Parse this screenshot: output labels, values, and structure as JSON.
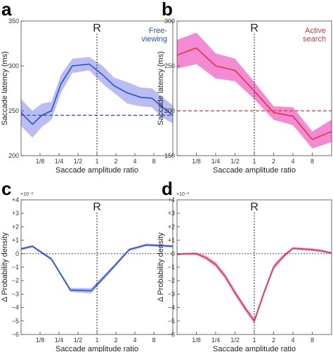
{
  "colors": {
    "blue": "#2451c9",
    "blue_band": "#b9bdf2",
    "red": "#d63a3a",
    "red_band": "#f48ad3",
    "pink_line": "#d43466",
    "pink_band": "#f4a4bf",
    "grid_dashed_blue": "#2451c9",
    "grid_dashed_red": "#e03030"
  },
  "chart_data": [
    {
      "id": "a",
      "panel_letter": "a",
      "type": "line",
      "xlabel": "Saccade amplitude ratio",
      "ylabel": "Saccade latency (ms)",
      "reference_label": "R",
      "annotation": [
        "Free-",
        "viewing"
      ],
      "exponent_label": "",
      "x_ticks": [
        "1/8",
        "1/4",
        "1/2",
        "1",
        "2",
        "4",
        "8"
      ],
      "x_tick_positions": [
        -3,
        -2,
        -1,
        0,
        1,
        2,
        3
      ],
      "xlim": [
        -4,
        4
      ],
      "ylim": [
        200,
        350
      ],
      "y_ticks": [
        200,
        250,
        300,
        350
      ],
      "y_tick_labels": [
        "200",
        "250",
        "300",
        "350"
      ],
      "reference_y": 245,
      "x": [
        -4,
        -3.4,
        -2.9,
        -2.4,
        -1.9,
        -1.3,
        -0.4,
        0.3,
        0.9,
        1.6,
        2.3,
        2.9,
        3.4,
        4
      ],
      "series": [
        {
          "values": [
            248,
            235,
            245,
            250,
            280,
            300,
            302,
            290,
            278,
            270,
            265,
            264,
            255,
            245
          ],
          "lower": [
            233,
            220,
            232,
            240,
            270,
            292,
            295,
            280,
            270,
            258,
            255,
            254,
            243,
            236
          ],
          "upper": [
            263,
            250,
            258,
            260,
            290,
            308,
            310,
            300,
            287,
            282,
            276,
            275,
            266,
            256
          ],
          "line_color": "#2451c9",
          "band_color": "#b9bdf2"
        }
      ]
    },
    {
      "id": "b",
      "panel_letter": "b",
      "type": "line",
      "xlabel": "Saccade amplitude ratio",
      "ylabel": "Saccade latency (ms)",
      "reference_label": "R",
      "annotation": [
        "Active",
        "search"
      ],
      "exponent_label": "",
      "x_ticks": [
        "1/8",
        "1/4",
        "1/2",
        "1",
        "2",
        "4",
        "8"
      ],
      "x_tick_positions": [
        -3,
        -2,
        -1,
        0,
        1,
        2,
        3
      ],
      "xlim": [
        -4,
        4
      ],
      "ylim": [
        150,
        300
      ],
      "y_ticks": [
        150,
        200,
        250,
        300
      ],
      "y_tick_labels": [
        "150",
        "200",
        "250",
        "300"
      ],
      "reference_y": 200,
      "x": [
        -4,
        -3,
        -2,
        -1,
        0,
        1,
        2,
        3,
        4
      ],
      "series": [
        {
          "values": [
            262,
            270,
            250,
            245,
            222,
            198,
            194,
            168,
            177
          ],
          "lower": [
            247,
            252,
            236,
            233,
            213,
            190,
            184,
            158,
            165
          ],
          "upper": [
            279,
            287,
            264,
            258,
            232,
            205,
            204,
            177,
            190
          ],
          "line_color": "#d63a3a",
          "band_color": "#f48ad3"
        }
      ]
    },
    {
      "id": "c",
      "panel_letter": "c",
      "type": "line",
      "xlabel": "Saccade amplitude ratio",
      "ylabel": "Δ Probability density",
      "reference_label": "R",
      "annotation": [],
      "exponent_label": "×10⁻²",
      "x_ticks": [
        "1/8",
        "1/4",
        "1/2",
        "1",
        "2",
        "4",
        "8"
      ],
      "x_tick_positions": [
        -3,
        -2,
        -1,
        0,
        1,
        2,
        3
      ],
      "xlim": [
        -4,
        4
      ],
      "ylim": [
        -6,
        4
      ],
      "y_ticks": [
        -6,
        -5,
        -4,
        -3,
        -2,
        -1,
        0,
        1,
        2,
        3,
        4
      ],
      "y_tick_labels": [
        "−6",
        "−5",
        "−4",
        "−3",
        "−2",
        "−1",
        "0",
        "+1",
        "+2",
        "+3",
        "+4"
      ],
      "reference_y": 0,
      "x": [
        -4,
        -3.4,
        -2.4,
        -1.4,
        -0.3,
        0.8,
        1.7,
        2.6,
        3.4,
        4
      ],
      "series": [
        {
          "values": [
            0.35,
            0.55,
            -0.4,
            -2.7,
            -2.75,
            -1.1,
            0.3,
            0.65,
            0.6,
            0.55
          ],
          "lower": [
            0.25,
            0.45,
            -0.52,
            -2.85,
            -2.95,
            -1.25,
            0.2,
            0.55,
            0.5,
            0.45
          ],
          "upper": [
            0.45,
            0.65,
            -0.28,
            -2.55,
            -2.55,
            -0.95,
            0.4,
            0.75,
            0.7,
            0.65
          ],
          "line_color": "#2451c9",
          "band_color": "#b9bdf2"
        }
      ]
    },
    {
      "id": "d",
      "panel_letter": "d",
      "type": "line",
      "xlabel": "Saccade amplitude ratio",
      "ylabel": "Δ Probability density",
      "reference_label": "R",
      "annotation": [],
      "exponent_label": "×10⁻²",
      "x_ticks": [
        "1/8",
        "1/4",
        "1/2",
        "1",
        "2",
        "4",
        "8"
      ],
      "x_tick_positions": [
        -3,
        -2,
        -1,
        0,
        1,
        2,
        3
      ],
      "xlim": [
        -4,
        4
      ],
      "ylim": [
        -6,
        4
      ],
      "y_ticks": [
        -6,
        -5,
        -4,
        -3,
        -2,
        -1,
        0,
        1,
        2,
        3,
        4
      ],
      "y_tick_labels": [
        "−6",
        "−5",
        "−4",
        "−3",
        "−2",
        "−1",
        "0",
        "+1",
        "+2",
        "+3",
        "+4"
      ],
      "reference_y": 0,
      "x": [
        -4,
        -3.5,
        -3,
        -2.5,
        -2,
        -1.5,
        -1,
        -0.5,
        0,
        0.5,
        1,
        1.5,
        2,
        2.5,
        3,
        3.5,
        4
      ],
      "series": [
        {
          "values": [
            -0.05,
            0.0,
            0.0,
            -0.3,
            -0.8,
            -1.7,
            -2.9,
            -4.0,
            -5.0,
            -2.9,
            -1.0,
            -0.2,
            0.4,
            0.35,
            0.3,
            0.2,
            0.05
          ],
          "lower": [
            -0.12,
            -0.08,
            -0.1,
            -0.45,
            -0.98,
            -1.9,
            -3.1,
            -4.2,
            -5.2,
            -3.1,
            -1.2,
            -0.35,
            0.3,
            0.25,
            0.2,
            0.1,
            -0.02
          ],
          "upper": [
            0.02,
            0.08,
            0.1,
            -0.15,
            -0.62,
            -1.5,
            -2.7,
            -3.8,
            -4.8,
            -2.7,
            -0.8,
            -0.05,
            0.5,
            0.45,
            0.4,
            0.3,
            0.12
          ],
          "line_color": "#d43466",
          "band_color": "#f4a4bf"
        }
      ]
    }
  ]
}
